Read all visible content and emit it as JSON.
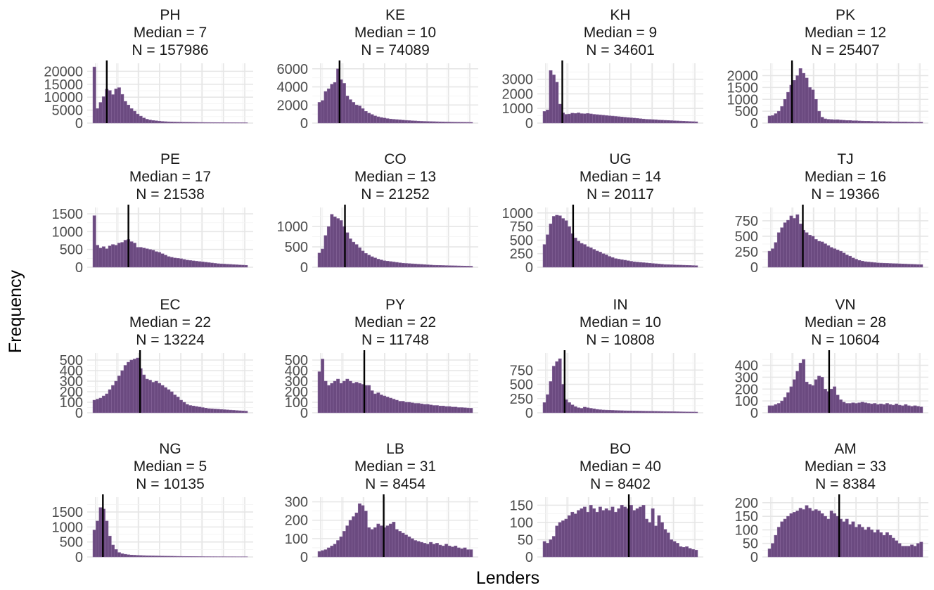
{
  "chart_data": {
    "type": "bar",
    "xlabel": "Lenders",
    "ylabel": "Frequency",
    "title_prefix_median": "Median = ",
    "title_prefix_n": "N = ",
    "bar_color": "#6b4a80",
    "bar_edge_color": "#8a6a9e",
    "median_line_color": "#000000",
    "grid": true,
    "x_tick_labels_shown": false,
    "panels": [
      {
        "country": "PH",
        "median_label": "7",
        "n_label": "157986",
        "median_pos": 0.09,
        "ylim": [
          0,
          22000
        ],
        "yticks": [
          0,
          5000,
          10000,
          15000,
          20000
        ],
        "ytick_labels": [
          "0",
          "5000",
          "10000",
          "15000",
          "20000"
        ],
        "values": [
          21700,
          5600,
          8000,
          10200,
          13100,
          12600,
          11000,
          13200,
          13700,
          11100,
          8400,
          7000,
          5600,
          4600,
          3500,
          2700,
          2000,
          1500,
          1200,
          1000,
          900,
          760,
          650,
          560,
          500,
          450,
          420,
          400,
          380,
          360,
          340,
          320,
          300,
          280,
          260,
          250,
          240,
          230,
          220,
          210,
          200,
          190,
          185,
          180,
          175,
          170,
          165,
          160,
          155,
          150
        ]
      },
      {
        "country": "KE",
        "median_label": "10",
        "n_label": "74089",
        "median_pos": 0.14,
        "ylim": [
          0,
          6300
        ],
        "yticks": [
          0,
          2000,
          4000,
          6000
        ],
        "ytick_labels": [
          "0",
          "2000",
          "4000",
          "6000"
        ],
        "values": [
          2300,
          2500,
          3500,
          3800,
          4300,
          4500,
          6000,
          4800,
          4400,
          3000,
          2600,
          2300,
          2000,
          1900,
          1600,
          1300,
          1100,
          950,
          800,
          700,
          620,
          560,
          500,
          450,
          420,
          390,
          360,
          330,
          300,
          280,
          260,
          240,
          220,
          200,
          190,
          180,
          170,
          160,
          150,
          140,
          130,
          120,
          115,
          110,
          105,
          100,
          95,
          90,
          85,
          80
        ]
      },
      {
        "country": "KH",
        "median_label": "9",
        "n_label": "34601",
        "median_pos": 0.125,
        "ylim": [
          0,
          3900
        ],
        "yticks": [
          0,
          1000,
          2000,
          3000
        ],
        "ytick_labels": [
          "0",
          "1000",
          "2000",
          "3000"
        ],
        "values": [
          800,
          900,
          3600,
          3300,
          2800,
          1300,
          700,
          600,
          620,
          680,
          660,
          700,
          650,
          640,
          660,
          630,
          600,
          580,
          560,
          540,
          520,
          500,
          480,
          460,
          440,
          420,
          400,
          380,
          360,
          340,
          320,
          300,
          280,
          260,
          250,
          240,
          230,
          210,
          200,
          190,
          180,
          170,
          160,
          150,
          140,
          130,
          120,
          110,
          100,
          90
        ]
      },
      {
        "country": "PK",
        "median_label": "12",
        "n_label": "25407",
        "median_pos": 0.155,
        "ylim": [
          0,
          2400
        ],
        "yticks": [
          0,
          500,
          1000,
          1500,
          2000
        ],
        "ytick_labels": [
          "0",
          "500",
          "1000",
          "1500",
          "2000"
        ],
        "values": [
          300,
          320,
          400,
          500,
          700,
          1000,
          1300,
          1600,
          1800,
          2000,
          2300,
          2100,
          1900,
          1500,
          1400,
          1000,
          500,
          250,
          180,
          160,
          150,
          140,
          145,
          130,
          120,
          110,
          110,
          100,
          100,
          90,
          85,
          80,
          80,
          75,
          70,
          70,
          65,
          65,
          60,
          60,
          55,
          55,
          50,
          50,
          50,
          45,
          45,
          40,
          40,
          40
        ]
      },
      {
        "country": "PE",
        "median_label": "17",
        "n_label": "21538",
        "median_pos": 0.23,
        "ylim": [
          0,
          1600
        ],
        "yticks": [
          0,
          500,
          1000,
          1500
        ],
        "ytick_labels": [
          "0",
          "500",
          "1000",
          "1500"
        ],
        "values": [
          1450,
          620,
          540,
          580,
          520,
          600,
          640,
          620,
          680,
          700,
          760,
          780,
          720,
          680,
          560,
          560,
          540,
          520,
          500,
          480,
          440,
          420,
          380,
          340,
          300,
          280,
          260,
          250,
          240,
          220,
          200,
          190,
          180,
          170,
          160,
          150,
          140,
          130,
          120,
          110,
          100,
          95,
          90,
          85,
          80,
          75,
          70,
          65,
          60,
          55
        ]
      },
      {
        "country": "CO",
        "median_label": "13",
        "n_label": "21252",
        "median_pos": 0.175,
        "ylim": [
          0,
          1400
        ],
        "yticks": [
          0,
          500,
          1000
        ],
        "ytick_labels": [
          "0",
          "500",
          "1000"
        ],
        "values": [
          350,
          450,
          780,
          1000,
          1300,
          1240,
          1200,
          1150,
          1000,
          850,
          700,
          620,
          560,
          480,
          400,
          340,
          300,
          260,
          230,
          200,
          180,
          160,
          150,
          140,
          130,
          120,
          110,
          100,
          95,
          90,
          85,
          80,
          75,
          70,
          65,
          60,
          55,
          50,
          48,
          46,
          44,
          42,
          40,
          38,
          36,
          34,
          32,
          30,
          28,
          26
        ]
      },
      {
        "country": "UG",
        "median_label": "14",
        "n_label": "20117",
        "median_pos": 0.195,
        "ylim": [
          0,
          1050
        ],
        "yticks": [
          0,
          250,
          500,
          750,
          1000
        ],
        "ytick_labels": [
          "0",
          "250",
          "500",
          "750",
          "1000"
        ],
        "values": [
          420,
          600,
          800,
          940,
          960,
          950,
          900,
          860,
          750,
          620,
          540,
          480,
          440,
          420,
          380,
          360,
          330,
          300,
          280,
          250,
          230,
          200,
          180,
          160,
          150,
          140,
          130,
          120,
          110,
          100,
          95,
          90,
          85,
          80,
          75,
          70,
          65,
          60,
          55,
          50,
          48,
          46,
          44,
          42,
          40,
          38,
          36,
          34,
          32,
          30
        ]
      },
      {
        "country": "TJ",
        "median_label": "16",
        "n_label": "19366",
        "median_pos": 0.225,
        "ylim": [
          0,
          920
        ],
        "yticks": [
          0,
          250,
          500,
          750
        ],
        "ytick_labels": [
          "0",
          "250",
          "500",
          "750"
        ],
        "values": [
          260,
          300,
          400,
          560,
          640,
          720,
          760,
          830,
          790,
          850,
          700,
          600,
          560,
          520,
          500,
          450,
          420,
          410,
          380,
          350,
          320,
          300,
          280,
          260,
          230,
          200,
          180,
          150,
          130,
          110,
          100,
          90,
          85,
          80,
          75,
          70,
          68,
          66,
          64,
          62,
          60,
          58,
          56,
          54,
          52,
          50,
          48,
          46,
          44,
          42
        ]
      },
      {
        "country": "EC",
        "median_label": "22",
        "n_label": "13224",
        "median_pos": 0.305,
        "ylim": [
          0,
          540
        ],
        "yticks": [
          0,
          100,
          200,
          300,
          400,
          500
        ],
        "ytick_labels": [
          "0",
          "100",
          "200",
          "300",
          "400",
          "500"
        ],
        "values": [
          120,
          130,
          140,
          160,
          180,
          220,
          260,
          300,
          350,
          400,
          450,
          480,
          500,
          510,
          520,
          420,
          360,
          320,
          310,
          290,
          300,
          280,
          260,
          240,
          220,
          200,
          170,
          150,
          120,
          100,
          80,
          70,
          65,
          60,
          55,
          50,
          45,
          40,
          38,
          36,
          34,
          32,
          30,
          28,
          26,
          24,
          22,
          20,
          18,
          16
        ]
      },
      {
        "country": "PY",
        "median_label": "22",
        "n_label": "11748",
        "median_pos": 0.3,
        "ylim": [
          0,
          540
        ],
        "yticks": [
          0,
          100,
          200,
          300,
          400,
          500
        ],
        "ytick_labels": [
          "0",
          "100",
          "200",
          "300",
          "400",
          "500"
        ],
        "values": [
          390,
          510,
          300,
          260,
          280,
          300,
          320,
          280,
          300,
          320,
          300,
          280,
          290,
          280,
          270,
          260,
          260,
          210,
          180,
          190,
          170,
          160,
          150,
          140,
          130,
          120,
          110,
          110,
          100,
          100,
          95,
          90,
          90,
          85,
          80,
          80,
          75,
          70,
          70,
          65,
          65,
          60,
          60,
          55,
          55,
          50,
          50,
          48,
          46,
          44
        ]
      },
      {
        "country": "IN",
        "median_label": "10",
        "n_label": "10808",
        "median_pos": 0.14,
        "ylim": [
          0,
          1000
        ],
        "yticks": [
          0,
          250,
          500,
          750
        ],
        "ytick_labels": [
          "0",
          "250",
          "500",
          "750"
        ],
        "values": [
          180,
          320,
          550,
          820,
          900,
          950,
          500,
          230,
          180,
          140,
          110,
          90,
          80,
          100,
          90,
          80,
          70,
          60,
          55,
          50,
          48,
          46,
          44,
          42,
          40,
          38,
          36,
          35,
          34,
          33,
          32,
          31,
          30,
          29,
          28,
          27,
          26,
          25,
          24,
          23,
          22,
          21,
          20,
          19,
          18,
          17,
          16,
          15,
          14,
          13
        ]
      },
      {
        "country": "VN",
        "median_label": "28",
        "n_label": "10604",
        "median_pos": 0.395,
        "ylim": [
          0,
          480
        ],
        "yticks": [
          0,
          100,
          200,
          300,
          400
        ],
        "ytick_labels": [
          "0",
          "100",
          "200",
          "300",
          "400"
        ],
        "values": [
          60,
          60,
          70,
          80,
          100,
          130,
          170,
          220,
          280,
          350,
          420,
          450,
          260,
          240,
          230,
          280,
          310,
          300,
          200,
          180,
          200,
          220,
          150,
          110,
          90,
          80,
          80,
          85,
          80,
          85,
          90,
          85,
          80,
          75,
          80,
          70,
          75,
          70,
          80,
          70,
          65,
          75,
          65,
          60,
          70,
          60,
          55,
          60,
          55,
          50
        ]
      },
      {
        "country": "NG",
        "median_label": "5",
        "n_label": "10135",
        "median_pos": 0.065,
        "ylim": [
          0,
          1900
        ],
        "yticks": [
          0,
          500,
          1000,
          1500
        ],
        "ytick_labels": [
          "0",
          "500",
          "1000",
          "1500"
        ],
        "values": [
          900,
          1200,
          1650,
          1600,
          1200,
          700,
          400,
          250,
          150,
          110,
          90,
          75,
          65,
          60,
          55,
          50,
          46,
          42,
          40,
          38,
          36,
          34,
          32,
          30,
          28,
          26,
          24,
          22,
          20,
          19,
          18,
          17,
          16,
          15,
          14,
          13,
          12,
          12,
          11,
          11,
          10,
          10,
          10,
          9,
          9,
          9,
          8,
          8,
          8,
          8
        ]
      },
      {
        "country": "LB",
        "median_label": "31",
        "n_label": "8454",
        "median_pos": 0.425,
        "ylim": [
          0,
          310
        ],
        "yticks": [
          0,
          100,
          200,
          300
        ],
        "ytick_labels": [
          "0",
          "100",
          "200",
          "300"
        ],
        "values": [
          30,
          35,
          40,
          50,
          60,
          70,
          90,
          110,
          140,
          170,
          200,
          220,
          240,
          290,
          280,
          250,
          160,
          150,
          160,
          180,
          170,
          160,
          170,
          180,
          190,
          150,
          140,
          130,
          120,
          110,
          100,
          90,
          85,
          80,
          75,
          70,
          80,
          70,
          75,
          65,
          60,
          70,
          60,
          55,
          60,
          50,
          45,
          50,
          40,
          40
        ]
      },
      {
        "country": "BO",
        "median_label": "40",
        "n_label": "8402",
        "median_pos": 0.555,
        "ylim": [
          0,
          165
        ],
        "yticks": [
          0,
          50,
          100,
          150
        ],
        "ytick_labels": [
          "0",
          "50",
          "100",
          "150"
        ],
        "values": [
          45,
          40,
          50,
          60,
          90,
          100,
          105,
          110,
          120,
          130,
          125,
          135,
          140,
          145,
          130,
          150,
          140,
          130,
          145,
          135,
          140,
          135,
          145,
          130,
          140,
          150,
          145,
          140,
          150,
          135,
          140,
          145,
          150,
          110,
          100,
          140,
          90,
          120,
          100,
          80,
          70,
          50,
          45,
          40,
          30,
          28,
          30,
          25,
          22,
          20
        ]
      },
      {
        "country": "AM",
        "median_label": "33",
        "n_label": "8384",
        "median_pos": 0.46,
        "ylim": [
          0,
          210
        ],
        "yticks": [
          0,
          50,
          100,
          150,
          200
        ],
        "ytick_labels": [
          "0",
          "50",
          "100",
          "150",
          "200"
        ],
        "values": [
          30,
          50,
          80,
          110,
          130,
          140,
          150,
          160,
          165,
          170,
          180,
          175,
          190,
          180,
          170,
          175,
          170,
          160,
          150,
          140,
          170,
          160,
          150,
          140,
          130,
          140,
          120,
          130,
          110,
          120,
          110,
          100,
          110,
          100,
          90,
          100,
          90,
          80,
          90,
          80,
          70,
          60,
          50,
          40,
          40,
          40,
          45,
          40,
          50,
          55
        ]
      }
    ]
  }
}
